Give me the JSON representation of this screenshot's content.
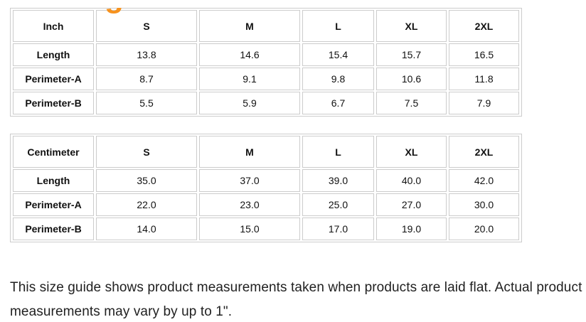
{
  "clipped_heading": {
    "visible_fragment": "g",
    "color": "#F6921E"
  },
  "tables": {
    "inch": {
      "unit_label": "Inch",
      "columns": [
        "S",
        "M",
        "L",
        "XL",
        "2XL"
      ],
      "rows": [
        {
          "label": "Length",
          "values": [
            "13.8",
            "14.6",
            "15.4",
            "15.7",
            "16.5"
          ]
        },
        {
          "label": "Perimeter-A",
          "values": [
            "8.7",
            "9.1",
            "9.8",
            "10.6",
            "11.8"
          ]
        },
        {
          "label": "Perimeter-B",
          "values": [
            "5.5",
            "5.9",
            "6.7",
            "7.5",
            "7.9"
          ]
        }
      ]
    },
    "centimeter": {
      "unit_label": "Centimeter",
      "columns": [
        "S",
        "M",
        "L",
        "XL",
        "2XL"
      ],
      "rows": [
        {
          "label": "Length",
          "values": [
            "35.0",
            "37.0",
            "39.0",
            "40.0",
            "42.0"
          ]
        },
        {
          "label": "Perimeter-A",
          "values": [
            "22.0",
            "23.0",
            "25.0",
            "27.0",
            "30.0"
          ]
        },
        {
          "label": "Perimeter-B",
          "values": [
            "14.0",
            "15.0",
            "17.0",
            "19.0",
            "20.0"
          ]
        }
      ]
    }
  },
  "note": {
    "lines": [
      "This size guide shows product measurements taken when products are laid flat. Actual product",
      "measurements may vary by up to 1\"."
    ]
  },
  "colors": {
    "table_border": "#cccccc",
    "text": "#212121",
    "accent_orange": "#F6921E"
  }
}
